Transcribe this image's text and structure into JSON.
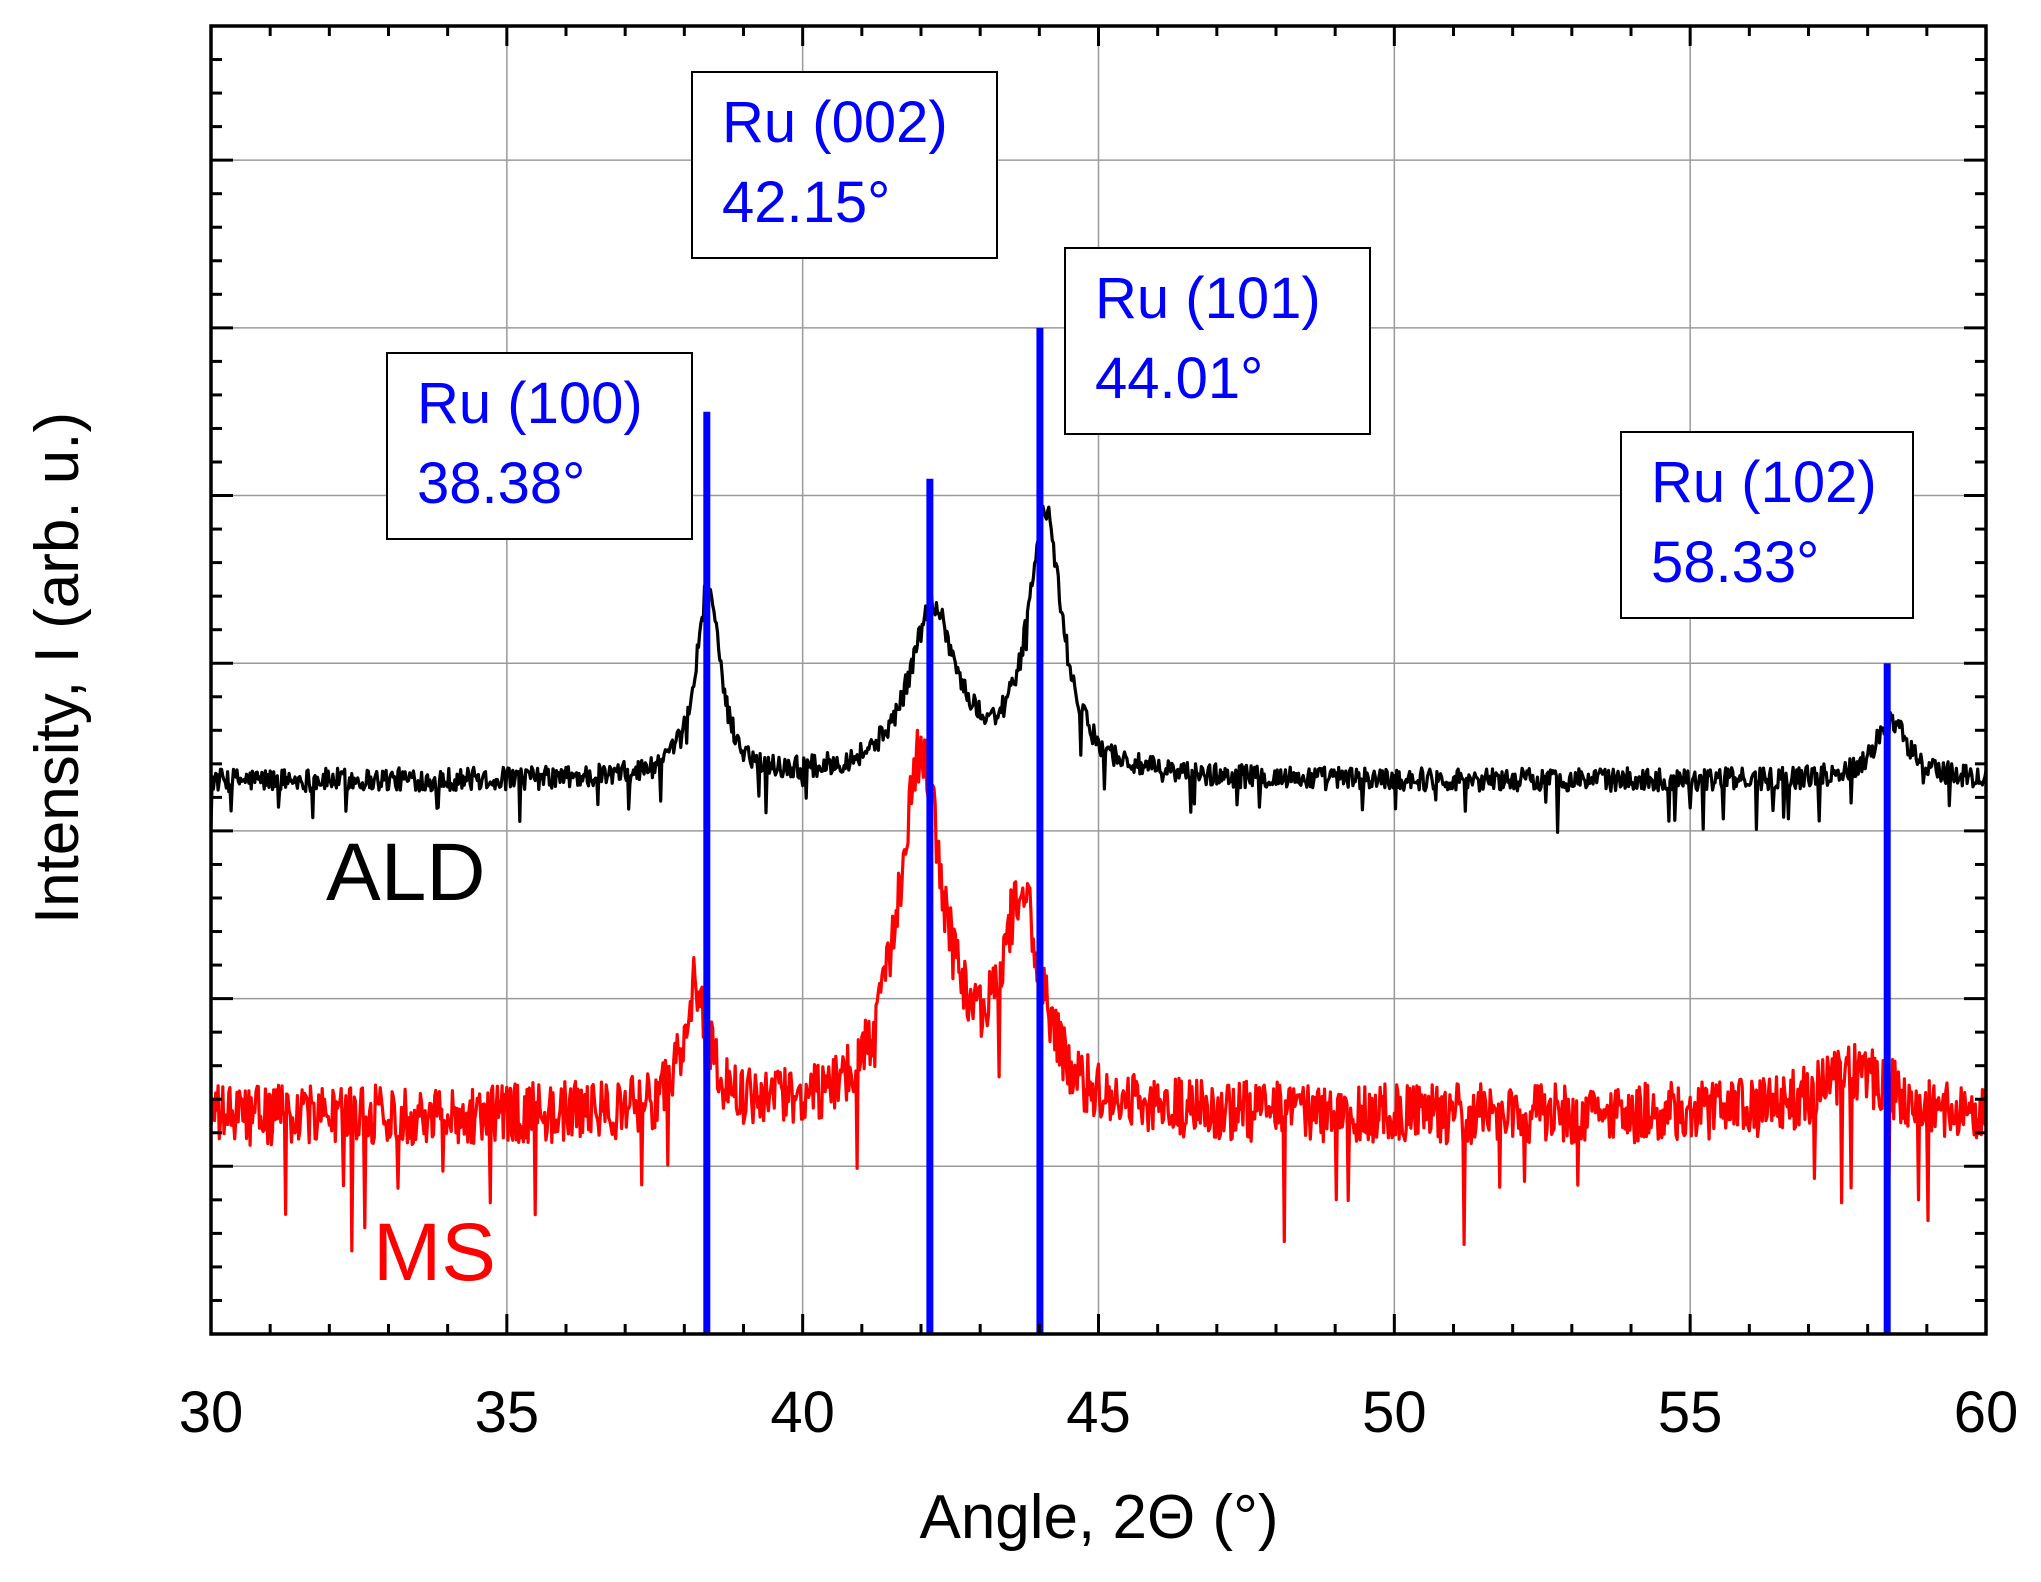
{
  "chart_data": {
    "type": "line",
    "title": "",
    "xlabel": "Angle, 2Θ (°)",
    "ylabel": "Intensity, I (arb. u.)",
    "xlim": [
      30,
      60
    ],
    "ylim": [
      0,
      7.8
    ],
    "x_ticks": [
      "30",
      "35",
      "40",
      "45",
      "50",
      "55",
      "60"
    ],
    "y_ticks_labeled": false,
    "grid": true,
    "colors": {
      "ALD": "#000000",
      "MS": "#ff0000",
      "reference": "#0000ff"
    },
    "series": [
      {
        "name": "ALD",
        "baseline": 3.3,
        "noise": 0.07,
        "peaks": [
          {
            "center": 38.4,
            "height": 1.15,
            "width": 0.24
          },
          {
            "center": 42.2,
            "height": 1.0,
            "width": 0.48
          },
          {
            "center": 44.1,
            "height": 1.55,
            "width": 0.35
          },
          {
            "center": 58.4,
            "height": 0.35,
            "width": 0.35
          }
        ]
      },
      {
        "name": "MS",
        "baseline": 1.3,
        "noise": 0.18,
        "peaks": [
          {
            "center": 38.2,
            "height": 0.75,
            "width": 0.25
          },
          {
            "center": 42.0,
            "height": 2.1,
            "width": 0.45
          },
          {
            "center": 43.7,
            "height": 1.2,
            "width": 0.4
          },
          {
            "center": 57.8,
            "height": 0.25,
            "width": 0.8
          }
        ]
      }
    ],
    "reference_lines": [
      {
        "label": "Ru (100)",
        "value_text": "38.38°",
        "x": 38.38,
        "top": 5.5
      },
      {
        "label": "Ru (002)",
        "value_text": "42.15°",
        "x": 42.15,
        "top": 5.1
      },
      {
        "label": "Ru (101)",
        "value_text": "44.01°",
        "x": 44.01,
        "top": 6.0
      },
      {
        "label": "Ru (102)",
        "value_text": "58.33°",
        "x": 58.33,
        "top": 4.0
      }
    ],
    "annotations": [
      {
        "text": "ALD",
        "color": "#000000"
      },
      {
        "text": "MS",
        "color": "#ff0000"
      }
    ]
  }
}
